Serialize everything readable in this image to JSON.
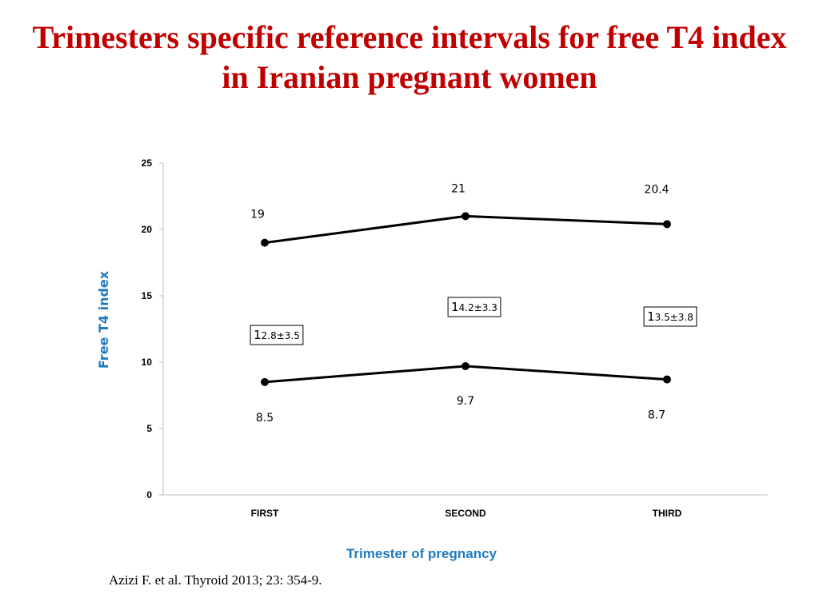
{
  "page": {
    "title": "Trimesters specific reference intervals for free T4 index in Iranian pregnant women",
    "citation": "Azizi F. et al. Thyroid 2013; 23: 354-9."
  },
  "chart_data": {
    "type": "line",
    "categories": [
      "FIRST",
      "SECOND",
      "THIRD"
    ],
    "series": [
      {
        "values": [
          19,
          21,
          20.4
        ],
        "value_labels": [
          "19",
          "21",
          "20.4"
        ]
      },
      {
        "values": [
          8.5,
          9.7,
          8.7
        ],
        "value_labels": [
          "8.5",
          "9.7",
          "8.7"
        ]
      }
    ],
    "annotations": [
      {
        "category": "FIRST",
        "lead": "1",
        "rest": "2.8±3.5"
      },
      {
        "category": "SECOND",
        "lead": "1",
        "rest": "4.2±3.3"
      },
      {
        "category": "THIRD",
        "lead": "1",
        "rest": "3.5±3.8"
      }
    ],
    "xlabel": "Trimester of pregnancy",
    "ylabel": "Free T4 index",
    "ylim": [
      0,
      25
    ],
    "yticks": [
      0,
      5,
      10,
      15,
      20,
      25
    ],
    "grid": false,
    "legend": "none",
    "colors": {
      "title": "#c00000",
      "axis_titles": "#1f7bbf",
      "lines": "#000000",
      "axis": "#bfbfbf"
    }
  }
}
